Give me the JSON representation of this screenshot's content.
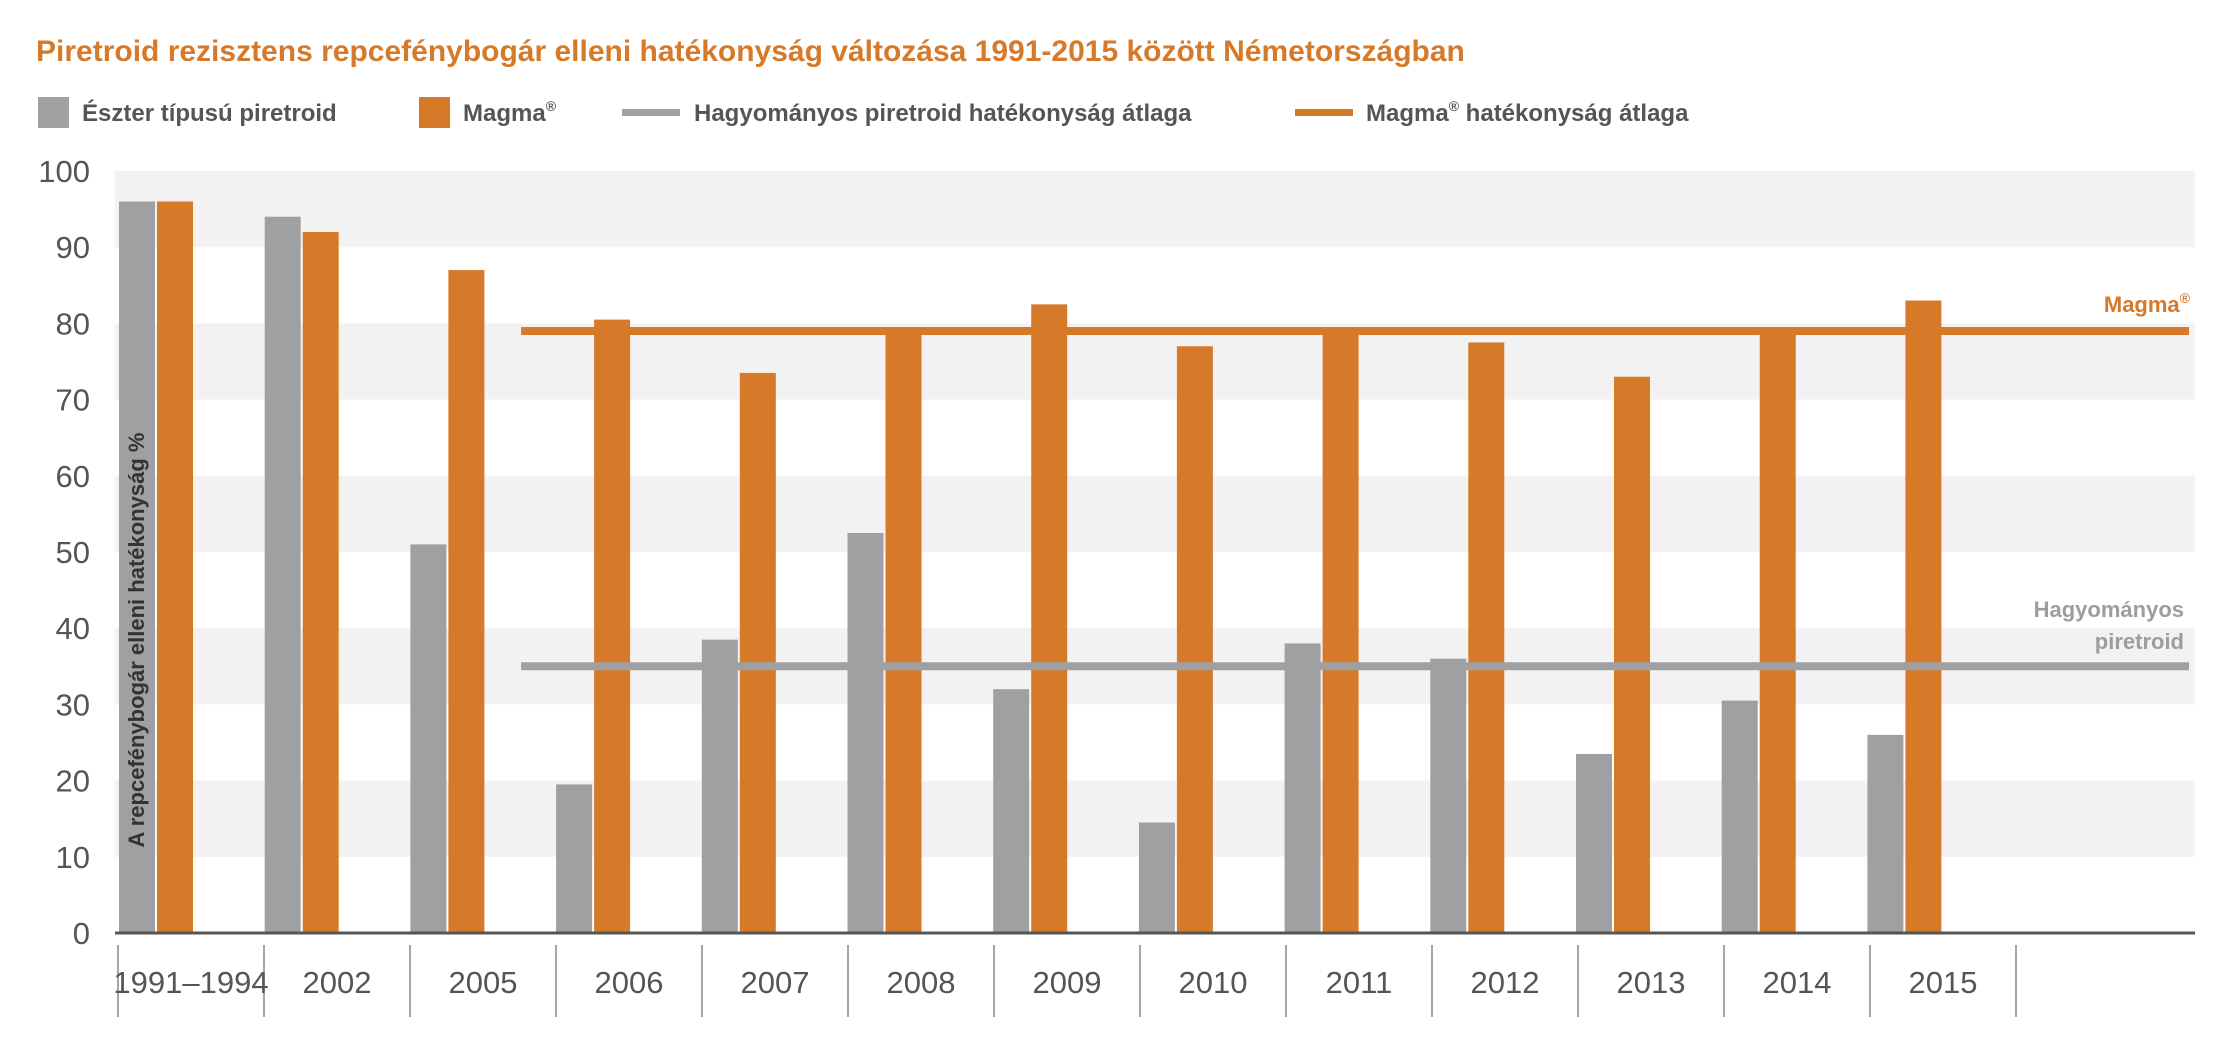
{
  "colors": {
    "gray_bar": "#9fa0a2",
    "orange_bar": "#d67a2a",
    "band": "#f2f2f2",
    "axis": "#555555"
  },
  "chart_data": {
    "type": "bar",
    "title": "Piretroid rezisztens repcefénybogár elleni hatékonyság változása 1991-2015 között Németországban",
    "ylabel": "A repcefénybogár elleni hatékonyság %",
    "xlabel": "",
    "ylim": [
      0,
      100
    ],
    "yticks": [
      0,
      10,
      20,
      30,
      40,
      50,
      60,
      70,
      80,
      90,
      100
    ],
    "grid": "alternating horizontal bands",
    "legend_position": "top-left",
    "categories": [
      "1991–1994",
      "2002",
      "2005",
      "2006",
      "2007",
      "2008",
      "2009",
      "2010",
      "2011",
      "2012",
      "2013",
      "2014",
      "2015"
    ],
    "series": [
      {
        "name": "Észter típusú piretroid",
        "color": "#9fa0a2",
        "values": [
          96,
          94,
          51,
          19.5,
          38.5,
          52.5,
          32,
          14.5,
          38,
          36,
          23.5,
          30.5,
          26
        ]
      },
      {
        "name": "Magma",
        "name_sup": "®",
        "color": "#d67a2a",
        "values": [
          96,
          92,
          87,
          80.5,
          73.5,
          79,
          82.5,
          77,
          79,
          77.5,
          73,
          79,
          83
        ]
      }
    ],
    "reference_lines": [
      {
        "name": "Hagyományos piretroid hatékonyság átlaga",
        "value": 35,
        "color": "#9fa0a2",
        "from_category": "2006",
        "label_lines": [
          "Hagyományos",
          "piretroid"
        ]
      },
      {
        "name": "Magma",
        "name_suffix": " hatékonyság átlaga",
        "name_sup": "®",
        "value": 79,
        "color": "#d67a2a",
        "from_category": "2006",
        "label_lines": [
          "Magma"
        ],
        "label_sup": "®"
      }
    ]
  }
}
